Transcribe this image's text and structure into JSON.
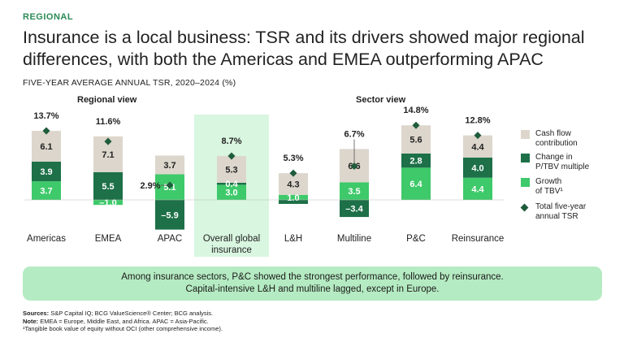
{
  "header": {
    "tag": "REGIONAL",
    "title_line1": "Insurance is a local business: TSR and its drivers showed major regional",
    "title_line2": "differences, with both the Americas and EMEA outperforming APAC",
    "subtitle": "FIVE-YEAR AVERAGE ANNUAL TSR, 2020–2024 (%)"
  },
  "groups": {
    "regional": "Regional view",
    "sector": "Sector view"
  },
  "chart_data": {
    "type": "bar",
    "stacked": true,
    "title": "FIVE-YEAR AVERAGE ANNUAL TSR, 2020–2024 (%)",
    "categories": [
      {
        "id": "americas",
        "label": "Americas",
        "label2": ""
      },
      {
        "id": "emea",
        "label": "EMEA",
        "label2": ""
      },
      {
        "id": "apac",
        "label": "APAC",
        "label2": ""
      },
      {
        "id": "global",
        "label": "Overall global",
        "label2": "insurance",
        "highlight": true
      },
      {
        "id": "lh",
        "label": "L&H",
        "label2": ""
      },
      {
        "id": "multiline",
        "label": "Multiline",
        "label2": ""
      },
      {
        "id": "pc",
        "label": "P&C",
        "label2": ""
      },
      {
        "id": "reinsurance",
        "label": "Reinsurance",
        "label2": ""
      }
    ],
    "series": [
      {
        "name": "Growth of TBV",
        "color": "#3ec96a",
        "text_color": "#ffffff",
        "values": [
          3.7,
          -1.0,
          5.1,
          3.0,
          1.0,
          3.5,
          6.4,
          4.4
        ]
      },
      {
        "name": "Change in P/TBV multiple",
        "color": "#1d7048",
        "text_color": "#ffffff",
        "values": [
          3.9,
          5.5,
          -5.9,
          0.4,
          -0.8,
          -3.4,
          2.8,
          4.0
        ]
      },
      {
        "name": "Cash flow contribution",
        "color": "#dcd6cc",
        "text_color": "#222222",
        "values": [
          6.1,
          7.1,
          3.7,
          5.3,
          4.3,
          6.6,
          5.6,
          4.4
        ]
      }
    ],
    "labels": {
      "tbv": [
        "3.7",
        "–1.0",
        "5.1",
        "3.0",
        "1.0",
        "3.5",
        "6.4",
        "4.4"
      ],
      "ptbv": [
        "3.9",
        "5.5",
        "–5.9",
        "0.4",
        "",
        "–3.4",
        "2.8",
        "4.0"
      ],
      "cash": [
        "6.1",
        "7.1",
        "3.7",
        "5.3",
        "4.3",
        "6.6",
        "5.6",
        "4.4"
      ]
    },
    "total": {
      "name": "Total five-year annual TSR",
      "values": [
        13.7,
        11.6,
        2.9,
        8.7,
        5.3,
        6.7,
        14.8,
        12.8
      ],
      "labels": [
        "13.7%",
        "11.6%",
        "2.9%",
        "8.7%",
        "5.3%",
        "6.7%",
        "14.8%",
        "12.8%"
      ]
    },
    "ylim": [
      -7,
      20
    ]
  },
  "legend": {
    "cash": {
      "line1": "Cash flow",
      "line2": "contribution",
      "color": "#dcd6cc"
    },
    "ptbv": {
      "line1": "Change in",
      "line2": "P/TBV multiple",
      "color": "#1d7048"
    },
    "tbv": {
      "line1": "Growth",
      "line2": "of TBV¹",
      "color": "#3ec96a"
    },
    "total": {
      "line1": "Total five-year",
      "line2": "annual TSR"
    }
  },
  "callout": {
    "line1": "Among insurance sectors, P&C showed the strongest performance, followed by reinsurance.",
    "line2": "Capital-intensive L&H and multiline lagged, except in Europe."
  },
  "footer": {
    "sources_label": "Sources:",
    "sources": "S&P Capital IQ; BCG ValueScience® Center; BCG analysis.",
    "note_label": "Note:",
    "note": "EMEA = Europe, Middle East, and Africa. APAC = Asia-Pacific.",
    "footnote": "¹Tangible book value of equity without OCI (other comprehensive income)."
  }
}
